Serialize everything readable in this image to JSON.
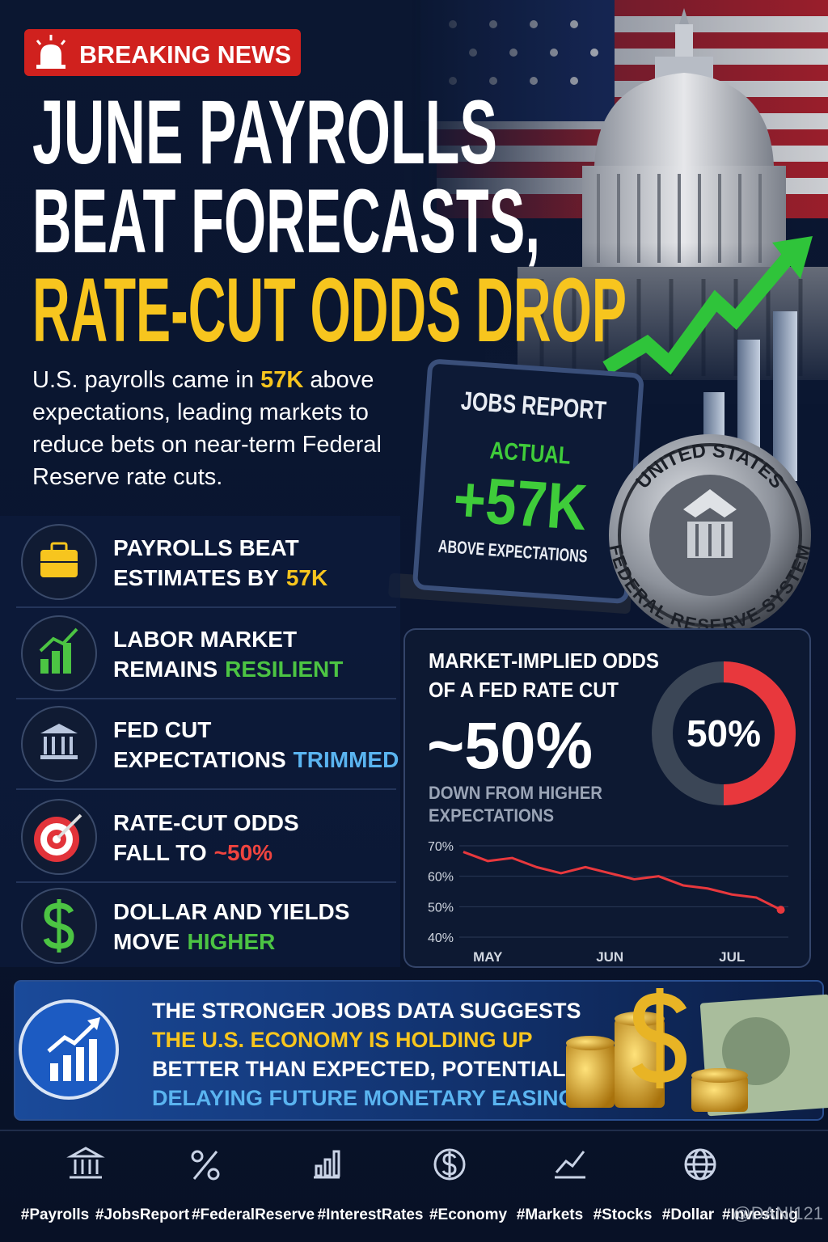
{
  "header": {
    "badge": "BREAKING NEWS",
    "title": [
      "JUNE PAYROLLS",
      "BEAT FORECASTS,",
      "RATE-CUT ODDS DROP"
    ],
    "title_color": "#ffffff",
    "title_accent_color": "#f7c51e"
  },
  "intro": {
    "text_before": "U.S. payrolls came in",
    "highlight": "57K",
    "text_after": "above expectations, leading markets to reduce bets on near-term Federal Reserve rate cuts."
  },
  "jobs_report": {
    "title": "JOBS REPORT",
    "label": "ACTUAL",
    "value": "+57K",
    "note": "ABOVE EXPECTATIONS"
  },
  "seal": {
    "top": "UNITED STATES",
    "bottom": "FEDERAL RESERVE SYSTEM"
  },
  "items": [
    {
      "line1": "PAYROLLS BEAT",
      "line2": "ESTIMATES BY",
      "highlight": "57K",
      "highlight_color": "#f7c51e"
    },
    {
      "line1": "LABOR MARKET",
      "line2": "REMAINS",
      "highlight": "RESILIENT",
      "highlight_color": "#4cc443"
    },
    {
      "line1": "FED CUT",
      "line2": "EXPECTATIONS",
      "highlight": "TRIMMED",
      "highlight_color": "#5ab4f0"
    },
    {
      "line1": "RATE-CUT ODDS",
      "line2": "FALL TO",
      "highlight": "~50%",
      "highlight_color": "#f0443f"
    },
    {
      "line1": "DOLLAR AND YIELDS",
      "line2": "MOVE",
      "highlight": "HIGHER",
      "highlight_color": "#4cc443"
    }
  ],
  "odds_panel": {
    "title": [
      "MARKET-IMPLIED ODDS",
      "OF A FED RATE CUT"
    ],
    "big_value": "~50%",
    "note": [
      "DOWN FROM HIGHER",
      "EXPECTATIONS"
    ]
  },
  "chart_data": [
    {
      "type": "donut",
      "values": [
        50
      ],
      "value_labels": [
        "50%"
      ],
      "color": "#e8383d"
    },
    {
      "type": "line",
      "categories": [
        null,
        "MAY",
        null,
        null,
        null,
        null,
        "JUN",
        null,
        null,
        null,
        null,
        "JUL",
        null,
        null
      ],
      "values": [
        68,
        65,
        66,
        63,
        61,
        63,
        61,
        59,
        60,
        57,
        56,
        54,
        53,
        49
      ],
      "color": "#e8383d",
      "ylim": [
        40,
        70
      ],
      "yticks": [
        {
          "value": 70,
          "label": "70%"
        },
        {
          "value": 60,
          "label": "60%"
        },
        {
          "value": 50,
          "label": "50%"
        },
        {
          "value": 40,
          "label": "40%"
        }
      ],
      "grid": true
    }
  ],
  "summary": {
    "lines": [
      "THE STRONGER JOBS DATA SUGGESTS",
      "THE U.S. ECONOMY IS HOLDING UP",
      "BETTER THAN EXPECTED, POTENTIALLY",
      "DELAYING FUTURE MONETARY EASING."
    ],
    "line_colors": [
      "#ffffff",
      "#f7c51e",
      "#ffffff",
      "#5ab4f0"
    ]
  },
  "hashtags": [
    "#Payrolls",
    "#JobsReport",
    "#FederalReserve",
    "#InterestRates",
    "#Economy",
    "#Markets",
    "#Stocks",
    "#Dollar",
    "#Investing"
  ],
  "watermark": "@DANI121"
}
